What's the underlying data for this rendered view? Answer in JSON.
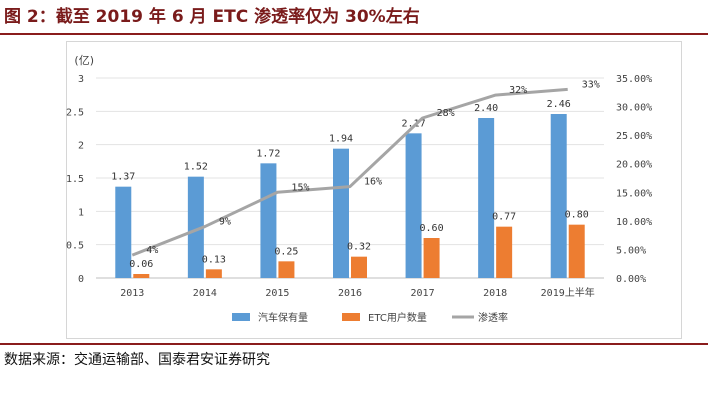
{
  "figure": {
    "title": "图 2：截至 2019 年 6 月 ETC 渗透率仅为 30%左右",
    "source": "数据来源：交通运输部、国泰君安证券研究"
  },
  "colors": {
    "car": "#5b9bd5",
    "etc": "#ed7d31",
    "rate": "#a5a5a5",
    "title": "#7a1b1b"
  },
  "chart_data": {
    "type": "bar",
    "categories": [
      "2013",
      "2014",
      "2015",
      "2016",
      "2017",
      "2018",
      "2019上半年"
    ],
    "y_unit_label": "(亿)",
    "ylim": [
      0,
      3
    ],
    "y_ticks": [
      "0",
      "0.5",
      "1",
      "1.5",
      "2",
      "2.5",
      "3"
    ],
    "y2lim": [
      0,
      0.35
    ],
    "y2_ticks": [
      "0.00%",
      "5.00%",
      "10.00%",
      "15.00%",
      "20.00%",
      "25.00%",
      "30.00%",
      "35.00%"
    ],
    "grid": true,
    "legend_position": "bottom",
    "series": [
      {
        "name": "汽车保有量",
        "kind": "bar",
        "axis": "left",
        "values": [
          1.37,
          1.52,
          1.72,
          1.94,
          2.17,
          2.4,
          2.46
        ],
        "labels": [
          "1.37",
          "1.52",
          "1.72",
          "1.94",
          "2.17",
          "2.40",
          "2.46"
        ]
      },
      {
        "name": "ETC用户数量",
        "kind": "bar",
        "axis": "left",
        "values": [
          0.06,
          0.13,
          0.25,
          0.32,
          0.6,
          0.77,
          0.8
        ],
        "labels": [
          "0.06",
          "0.13",
          "0.25",
          "0.32",
          "0.60",
          "0.77",
          "0.80"
        ]
      },
      {
        "name": "渗透率",
        "kind": "line",
        "axis": "right",
        "values": [
          0.04,
          0.09,
          0.15,
          0.16,
          0.28,
          0.32,
          0.33
        ],
        "labels": [
          "4%",
          "9%",
          "15%",
          "16%",
          "28%",
          "32%",
          "33%"
        ]
      }
    ]
  }
}
